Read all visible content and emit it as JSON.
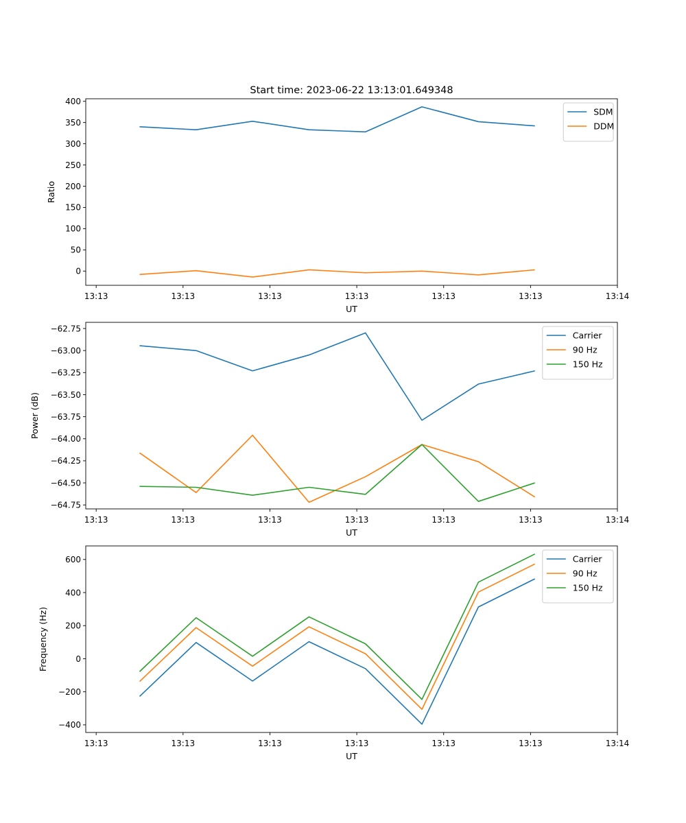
{
  "title": "Start time: 2023-06-22 13:13:01.649348",
  "colors": {
    "blue": "#1f77b4",
    "orange": "#ff7f0e",
    "green": "#2ca02c"
  },
  "x_axis": {
    "label": "UT",
    "tick_labels": [
      "13:13",
      "13:13",
      "13:13",
      "13:13",
      "13:13",
      "13:13",
      "13:14"
    ],
    "tick_positions": [
      0,
      1,
      2,
      3,
      4,
      5,
      6
    ],
    "range": [
      -0.12,
      6.0
    ],
    "data_positions": [
      0.5,
      1.15,
      1.8,
      2.45,
      3.1,
      3.75,
      4.4,
      5.05
    ]
  },
  "chart_data": [
    {
      "type": "line",
      "title": "Start time: 2023-06-22 13:13:01.649348",
      "xlabel": "UT",
      "ylabel": "Ratio",
      "ylim": [
        -33.5,
        406
      ],
      "yticks": [
        0,
        50,
        100,
        150,
        200,
        250,
        300,
        350,
        400
      ],
      "legend": "top-right",
      "grid": false,
      "series": [
        {
          "name": "SDM",
          "color": "#1f77b4",
          "values": [
            340,
            333,
            353,
            333,
            328,
            387,
            352,
            342
          ]
        },
        {
          "name": "DDM",
          "color": "#ff7f0e",
          "values": [
            -8,
            1,
            -14,
            3,
            -4,
            0,
            -9,
            3
          ]
        }
      ]
    },
    {
      "type": "line",
      "xlabel": "UT",
      "ylabel": "Power (dB)",
      "ylim": [
        -64.795,
        -62.68
      ],
      "yticks": [
        -62.75,
        -63.0,
        -63.25,
        -63.5,
        -63.75,
        -64.0,
        -64.25,
        -64.5,
        -64.75
      ],
      "ytick_labels": [
        "−62.75",
        "−63.00",
        "−63.25",
        "−63.50",
        "−63.75",
        "−64.00",
        "−64.25",
        "−64.50",
        "−64.75"
      ],
      "legend": "top-right",
      "grid": false,
      "series": [
        {
          "name": "Carrier",
          "color": "#1f77b4",
          "values": [
            -62.945,
            -63.0,
            -63.23,
            -63.05,
            -62.8,
            -63.79,
            -63.38,
            -63.23
          ]
        },
        {
          "name": "90 Hz",
          "color": "#ff7f0e",
          "values": [
            -64.16,
            -64.61,
            -63.96,
            -64.72,
            -64.43,
            -64.065,
            -64.26,
            -64.66
          ]
        },
        {
          "name": "150 Hz",
          "color": "#2ca02c",
          "values": [
            -64.54,
            -64.55,
            -64.64,
            -64.55,
            -64.63,
            -64.065,
            -64.71,
            -64.5
          ]
        }
      ]
    },
    {
      "type": "line",
      "xlabel": "UT",
      "ylabel": "Frequency (Hz)",
      "ylim": [
        -446,
        682
      ],
      "yticks": [
        -400,
        -200,
        0,
        200,
        400,
        600
      ],
      "ytick_labels": [
        "−400",
        "−200",
        "0",
        "200",
        "400",
        "600"
      ],
      "legend": "top-right",
      "grid": false,
      "series": [
        {
          "name": "Carrier",
          "color": "#1f77b4",
          "values": [
            -228,
            98,
            -135,
            103,
            -60,
            -396,
            313,
            483
          ]
        },
        {
          "name": "90 Hz",
          "color": "#ff7f0e",
          "values": [
            -138,
            188,
            -45,
            193,
            30,
            -306,
            403,
            573
          ]
        },
        {
          "name": "150 Hz",
          "color": "#2ca02c",
          "values": [
            -78,
            248,
            15,
            253,
            90,
            -246,
            463,
            633
          ]
        }
      ]
    }
  ]
}
